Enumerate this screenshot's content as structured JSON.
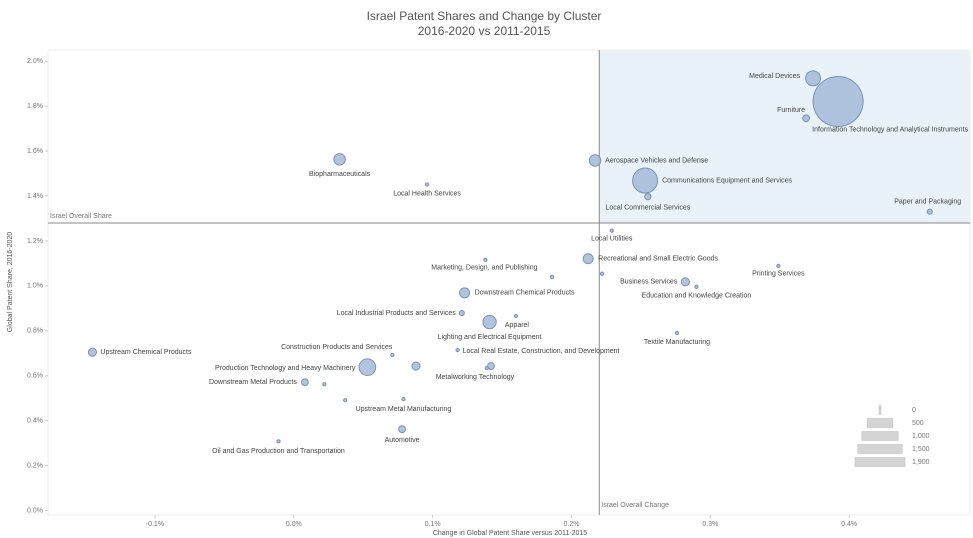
{
  "chart_data": {
    "type": "scatter",
    "title": "Israel Patent Shares and Change by Cluster",
    "subtitle": "2016-2020 vs 2011-2015",
    "x_label": "Change in Global Patent Share versus 2011-2015",
    "y_label": "Global Patent Share, 2016-2020",
    "color": "#a9bcd9",
    "edge_color": "#7a92b8",
    "highlight_color": "#e9f2f9",
    "grid": false,
    "xlim": [
      -0.177,
      0.487
    ],
    "ylim": [
      -0.02,
      2.05
    ],
    "xticks": [
      {
        "value": -0.1,
        "label": "-0.1%"
      },
      {
        "value": 0,
        "label": "0.0%"
      },
      {
        "value": 0.1,
        "label": "0.1%"
      },
      {
        "value": 0.2,
        "label": "0.2%"
      },
      {
        "value": 0.3,
        "label": "0.3%"
      },
      {
        "value": 0.4,
        "label": "0.4%"
      }
    ],
    "yticks": [
      {
        "value": 0,
        "label": "0.0%"
      },
      {
        "value": 0.2,
        "label": "0.2%"
      },
      {
        "value": 0.4,
        "label": "0.4%"
      },
      {
        "value": 0.6,
        "label": "0.6%"
      },
      {
        "value": 0.8,
        "label": "0.8%"
      },
      {
        "value": 1.0,
        "label": "1.0%"
      },
      {
        "value": 1.2,
        "label": "1.2%"
      },
      {
        "value": 1.4,
        "label": "1.4%"
      },
      {
        "value": 1.6,
        "label": "1.6%"
      },
      {
        "value": 1.8,
        "label": "1.8%"
      },
      {
        "value": 2.0,
        "label": "2.0%"
      }
    ],
    "x_reference": {
      "value": 0.22,
      "label": "Israel Overall Change"
    },
    "y_reference": {
      "value": 1.28,
      "label": "Israel Overall Share"
    },
    "labels": [
      "Medical Devices",
      "Information Technology and Analytical Instruments",
      "Furniture",
      "Aerospace Vehicles and Defense",
      "Communications Equipment and Services",
      "Local Commercial Services",
      "Paper and Packaging",
      "Biopharmaceuticals",
      "Local Health Services",
      "Local Utilities",
      "Recreational and Small Electric Goods",
      "Marketing, Design, and Publishing",
      null,
      null,
      "Printing Services",
      "Business Services",
      "Education and Knowledge Creation",
      "Downstream Chemical Products",
      "Local Industrial Products and Services",
      "Apparel",
      "Lighting and Electrical Equipment",
      "Textile Manufacturing",
      "Local Real Estate, Construction, and Development",
      "Upstream Chemical Products",
      "Construction Products and Services",
      "Production Technology and Heavy Machinery",
      null,
      "Metalworking Technology",
      null,
      "Downstream Metal Products",
      null,
      null,
      "Upstream Metal Manufacturing",
      "Automotive",
      "Oil and Gas Production and Transportation"
    ],
    "x": [
      0.374,
      0.392,
      0.369,
      0.217,
      0.253,
      0.255,
      0.458,
      0.033,
      0.096,
      0.229,
      0.212,
      0.138,
      0.186,
      0.222,
      0.349,
      0.282,
      0.29,
      0.123,
      0.121,
      0.16,
      0.141,
      0.276,
      0.118,
      -0.145,
      0.071,
      0.053,
      0.088,
      0.142,
      0.139,
      0.008,
      0.022,
      0.037,
      0.079,
      0.078,
      -0.011
    ],
    "values": [
      1.924,
      1.821,
      1.746,
      1.558,
      1.469,
      1.397,
      1.33,
      1.563,
      1.451,
      1.246,
      1.121,
      1.116,
      1.04,
      1.054,
      1.089,
      1.018,
      0.996,
      0.969,
      0.879,
      0.866,
      0.839,
      0.79,
      0.714,
      0.705,
      0.692,
      0.638,
      0.643,
      0.643,
      0.634,
      0.571,
      0.562,
      0.491,
      0.496,
      0.362,
      0.308
    ],
    "sizes": [
      170,
      1900,
      35,
      100,
      475,
      30,
      20,
      100,
      8,
      8,
      75,
      8,
      8,
      5,
      8,
      50,
      8,
      75,
      20,
      8,
      135,
      8,
      8,
      50,
      8,
      210,
      50,
      35,
      5,
      35,
      5,
      5,
      8,
      35,
      8
    ],
    "size_legend": [
      0,
      500,
      {
        "value": 1000,
        "label": "1,000"
      },
      {
        "value": 1500,
        "label": "1,500"
      },
      {
        "value": 1900,
        "label": "1,900"
      }
    ]
  }
}
